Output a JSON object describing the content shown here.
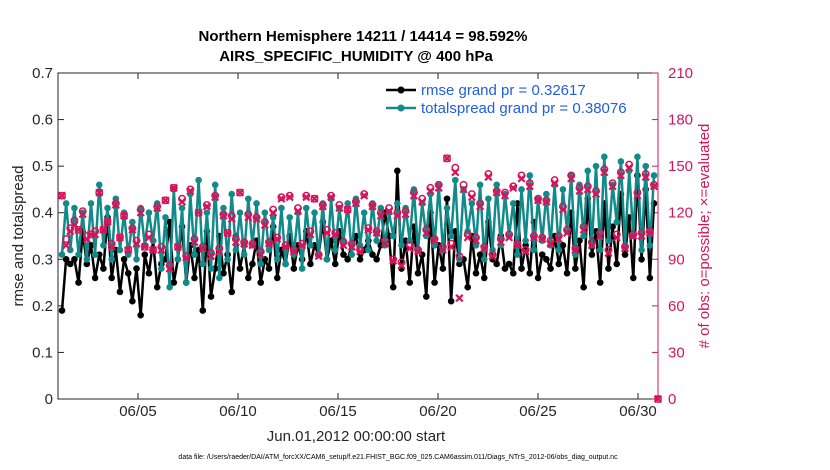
{
  "chart_data": {
    "type": "line",
    "title": "Northern Hemisphere 14211 / 14414 = 98.592%",
    "subtitle": "AIRS_SPECIFIC_HUMIDITY @ 400 hPa",
    "xlabel": "Jun.01,2012 00:00:00 start",
    "ylabel": "rmse and totalspread",
    "ylabel_right": "# of obs: o=possible; ×=evaluated",
    "xlim": [
      1,
      31
    ],
    "ylim": [
      0,
      0.7
    ],
    "ylim_right": [
      0,
      210
    ],
    "x_ticks": [
      5,
      10,
      15,
      20,
      25,
      30
    ],
    "x_tick_labels": [
      "06/05",
      "06/10",
      "06/15",
      "06/20",
      "06/25",
      "06/30"
    ],
    "y_tick_labels": [
      "0",
      "0.1",
      "0.2",
      "0.3",
      "0.4",
      "0.5",
      "0.6",
      "0.7"
    ],
    "y_right_tick_labels": [
      "0",
      "30",
      "60",
      "90",
      "120",
      "150",
      "180",
      "210"
    ],
    "legend_position": "top-right",
    "footnote": "data file: /Users/raeder/DAI/ATM_forcXX/CAM6_setup/f.e21.FHIST_BGC.f09_025.CAM6assim.011/Diags_NTrS_2012-06/obs_diag_output.nc",
    "colors": {
      "rmse": "#000000",
      "spread": "#138a8a",
      "obs": "#d6145a",
      "legend_text": "#1f5fe0"
    },
    "series": [
      {
        "name": "rmse",
        "legend": "rmse grand pr = 0.32617",
        "values": [
          0.19,
          0.3,
          0.29,
          0.3,
          0.25,
          0.36,
          0.29,
          0.33,
          0.26,
          0.31,
          0.28,
          0.39,
          0.26,
          0.32,
          0.23,
          0.3,
          0.27,
          0.21,
          0.28,
          0.18,
          0.31,
          0.27,
          0.34,
          0.24,
          0.29,
          0.3,
          0.38,
          0.25,
          0.3,
          0.37,
          0.25,
          0.33,
          0.26,
          0.32,
          0.19,
          0.36,
          0.22,
          0.28,
          0.35,
          0.27,
          0.31,
          0.23,
          0.35,
          0.28,
          0.33,
          0.26,
          0.29,
          0.34,
          0.25,
          0.3,
          0.28,
          0.37,
          0.26,
          0.32,
          0.29,
          0.35,
          0.28,
          0.33,
          0.3,
          0.36,
          0.29,
          0.33,
          0.31,
          0.38,
          0.3,
          0.34,
          0.29,
          0.36,
          0.31,
          0.3,
          0.33,
          0.35,
          0.3,
          0.32,
          0.34,
          0.31,
          0.3,
          0.33,
          0.4,
          0.35,
          0.24,
          0.49,
          0.28,
          0.34,
          0.25,
          0.37,
          0.27,
          0.31,
          0.22,
          0.4,
          0.25,
          0.33,
          0.28,
          0.43,
          0.21,
          0.36,
          0.29,
          0.3,
          0.24,
          0.35,
          0.27,
          0.31,
          0.26,
          0.38,
          0.3,
          0.29,
          0.35,
          0.28,
          0.29,
          0.27,
          0.42,
          0.28,
          0.33,
          0.27,
          0.38,
          0.26,
          0.31,
          0.3,
          0.28,
          0.35,
          0.29,
          0.33,
          0.27,
          0.4,
          0.28,
          0.34,
          0.24,
          0.43,
          0.31,
          0.36,
          0.25,
          0.42,
          0.28,
          0.37,
          0.29,
          0.44,
          0.31,
          0.39,
          0.26,
          0.48,
          0.3,
          0.45,
          0.26,
          0.42
        ]
      },
      {
        "name": "totalspread",
        "legend": "totalspread grand pr = 0.38076",
        "values": [
          0.31,
          0.42,
          0.32,
          0.41,
          0.31,
          0.4,
          0.3,
          0.42,
          0.31,
          0.46,
          0.33,
          0.41,
          0.3,
          0.43,
          0.32,
          0.4,
          0.31,
          0.38,
          0.3,
          0.41,
          0.33,
          0.4,
          0.34,
          0.42,
          0.28,
          0.39,
          0.24,
          0.45,
          0.3,
          0.41,
          0.25,
          0.44,
          0.31,
          0.47,
          0.29,
          0.4,
          0.28,
          0.46,
          0.26,
          0.41,
          0.3,
          0.44,
          0.32,
          0.4,
          0.31,
          0.43,
          0.33,
          0.42,
          0.29,
          0.4,
          0.32,
          0.39,
          0.3,
          0.41,
          0.29,
          0.39,
          0.31,
          0.4,
          0.28,
          0.41,
          0.33,
          0.4,
          0.31,
          0.42,
          0.3,
          0.43,
          0.32,
          0.41,
          0.34,
          0.42,
          0.31,
          0.43,
          0.33,
          0.4,
          0.32,
          0.42,
          0.34,
          0.41,
          0.33,
          0.4,
          0.35,
          0.42,
          0.33,
          0.41,
          0.34,
          0.45,
          0.32,
          0.42,
          0.35,
          0.44,
          0.33,
          0.46,
          0.32,
          0.41,
          0.35,
          0.47,
          0.3,
          0.45,
          0.36,
          0.42,
          0.33,
          0.46,
          0.3,
          0.43,
          0.32,
          0.46,
          0.33,
          0.44,
          0.35,
          0.42,
          0.31,
          0.45,
          0.34,
          0.48,
          0.32,
          0.43,
          0.34,
          0.44,
          0.33,
          0.46,
          0.32,
          0.45,
          0.36,
          0.48,
          0.31,
          0.46,
          0.35,
          0.49,
          0.33,
          0.5,
          0.32,
          0.52,
          0.34,
          0.46,
          0.38,
          0.51,
          0.33,
          0.49,
          0.35,
          0.52,
          0.32,
          0.5,
          0.33,
          0.48
        ]
      },
      {
        "name": "possible obs",
        "values": [
          131,
          103,
          110,
          115,
          109,
          121,
          105,
          106,
          108,
          133,
          109,
          114,
          100,
          126,
          104,
          118,
          96,
          110,
          102,
          122,
          98,
          106,
          96,
          124,
          98,
          128,
          86,
          136,
          98,
          129,
          92,
          135,
          103,
          120,
          98,
          125,
          94,
          131,
          97,
          119,
          107,
          118,
          103,
          133,
          101,
          119,
          100,
          117,
          95,
          114,
          101,
          122,
          104,
          130,
          99,
          131,
          96,
          123,
          100,
          131,
          108,
          129,
          93,
          125,
          109,
          131,
          107,
          125,
          101,
          122,
          100,
          127,
          96,
          132,
          110,
          125,
          108,
          120,
          102,
          123,
          90,
          120,
          88,
          121,
          99,
          133,
          96,
          129,
          109,
          136,
          103,
          138,
          98,
          155,
          100,
          149,
          92,
          138,
          106,
          132,
          104,
          126,
          98,
          145,
          93,
          134,
          103,
          133,
          106,
          137,
          100,
          144,
          96,
          139,
          105,
          129,
          104,
          128,
          102,
          141,
          105,
          124,
          109,
          144,
          97,
          136,
          111,
          137,
          101,
          134,
          107,
          148,
          96,
          139,
          106,
          146,
          98,
          151,
          106,
          133,
          107,
          145,
          108,
          138
        ]
      },
      {
        "name": "evaluated obs",
        "values": [
          131,
          99,
          108,
          112,
          109,
          119,
          103,
          106,
          106,
          133,
          109,
          114,
          98,
          125,
          104,
          118,
          96,
          109,
          100,
          120,
          98,
          104,
          96,
          123,
          96,
          128,
          84,
          136,
          98,
          127,
          91,
          134,
          101,
          120,
          97,
          124,
          92,
          130,
          95,
          118,
          107,
          116,
          101,
          133,
          100,
          117,
          99,
          116,
          93,
          112,
          100,
          120,
          103,
          129,
          98,
          130,
          95,
          121,
          99,
          130,
          106,
          129,
          92,
          124,
          107,
          130,
          106,
          123,
          99,
          122,
          98,
          126,
          95,
          131,
          109,
          124,
          107,
          118,
          100,
          121,
          89,
          118,
          86,
          119,
          97,
          131,
          95,
          127,
          107,
          134,
          102,
          136,
          96,
          155,
          98,
          146,
          65,
          135,
          104,
          130,
          102,
          124,
          97,
          143,
          92,
          133,
          101,
          131,
          104,
          136,
          99,
          142,
          95,
          137,
          104,
          128,
          103,
          127,
          100,
          139,
          103,
          122,
          107,
          142,
          96,
          134,
          109,
          135,
          99,
          132,
          105,
          146,
          94,
          137,
          104,
          144,
          97,
          149,
          105,
          131,
          105,
          143,
          107,
          137
        ]
      }
    ]
  }
}
